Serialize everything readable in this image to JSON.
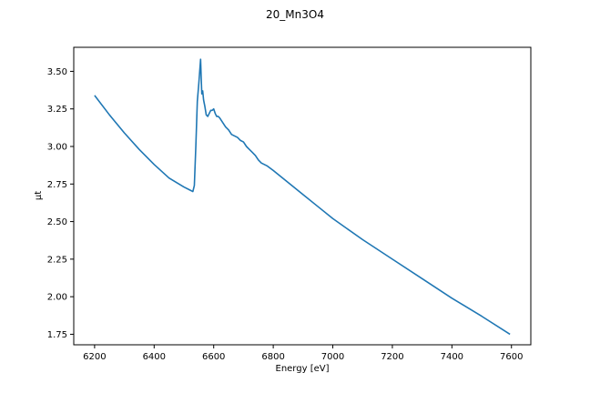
{
  "chart_data": {
    "type": "line",
    "title": "20_Mn3O4",
    "xlabel": "Energy [eV]",
    "ylabel": "μt",
    "xlim": [
      6130,
      7665
    ],
    "ylim": [
      1.68,
      3.66
    ],
    "grid": false,
    "legend": "none",
    "line_color": "#1f77b4",
    "xticks": [
      6200,
      6400,
      6600,
      6800,
      7000,
      7200,
      7400,
      7600
    ],
    "yticks": [
      1.75,
      2.0,
      2.25,
      2.5,
      2.75,
      3.0,
      3.25,
      3.5
    ],
    "ytick_labels": [
      "1.75",
      "2.00",
      "2.25",
      "2.50",
      "2.75",
      "3.00",
      "3.25",
      "3.50"
    ],
    "series": [
      {
        "x": [
          6200,
          6250,
          6300,
          6350,
          6400,
          6450,
          6500,
          6520,
          6530,
          6535,
          6540,
          6545,
          6550,
          6553,
          6556,
          6558,
          6560,
          6563,
          6566,
          6570,
          6575,
          6580,
          6585,
          6590,
          6595,
          6600,
          6605,
          6610,
          6615,
          6620,
          6630,
          6640,
          6650,
          6660,
          6670,
          6680,
          6690,
          6700,
          6710,
          6720,
          6730,
          6740,
          6750,
          6760,
          6780,
          6800,
          6850,
          6900,
          6950,
          7000,
          7100,
          7200,
          7300,
          7400,
          7500,
          7595
        ],
        "y": [
          3.34,
          3.21,
          3.09,
          2.98,
          2.88,
          2.79,
          2.73,
          2.71,
          2.7,
          2.74,
          3.0,
          3.3,
          3.42,
          3.5,
          3.58,
          3.46,
          3.35,
          3.37,
          3.31,
          3.27,
          3.21,
          3.2,
          3.22,
          3.24,
          3.24,
          3.25,
          3.22,
          3.2,
          3.2,
          3.19,
          3.16,
          3.13,
          3.11,
          3.08,
          3.07,
          3.06,
          3.04,
          3.03,
          3.0,
          2.98,
          2.96,
          2.94,
          2.91,
          2.89,
          2.87,
          2.84,
          2.76,
          2.68,
          2.6,
          2.52,
          2.38,
          2.25,
          2.12,
          1.99,
          1.87,
          1.75
        ]
      }
    ]
  }
}
